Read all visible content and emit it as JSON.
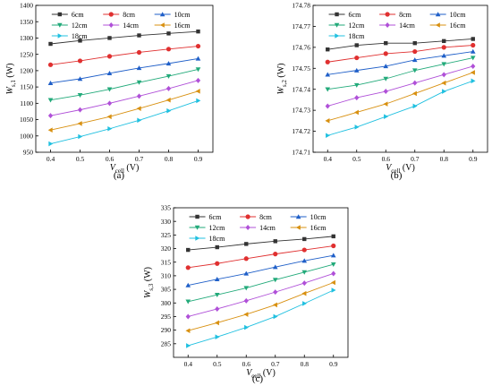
{
  "figure": {
    "panel_labels": [
      "(a)",
      "(b)",
      "(c)"
    ]
  },
  "series_style": [
    {
      "color": "#333333",
      "marker": "square"
    },
    {
      "color": "#e03030",
      "marker": "circle"
    },
    {
      "color": "#1f5fc8",
      "marker": "triangle-up"
    },
    {
      "color": "#22aa7a",
      "marker": "triangle-down"
    },
    {
      "color": "#b050d8",
      "marker": "diamond"
    },
    {
      "color": "#d89010",
      "marker": "triangle-left"
    },
    {
      "color": "#20c0e0",
      "marker": "triangle-right"
    }
  ],
  "chart_data": [
    {
      "type": "line",
      "ylabel": "W_{s,1} (W)",
      "xlabel": "V_{cell} (V)",
      "x": [
        0.4,
        0.5,
        0.6,
        0.7,
        0.8,
        0.9
      ],
      "xticks": [
        "0.4",
        "0.5",
        "0.6",
        "0.7",
        "0.8",
        "0.9"
      ],
      "xlim": [
        0.35,
        0.95
      ],
      "ylim": [
        950,
        1400
      ],
      "yticks": [
        "950",
        "1000",
        "1050",
        "1100",
        "1150",
        "1200",
        "1250",
        "1300",
        "1350",
        "1400"
      ],
      "legend_position": "top",
      "series": [
        {
          "name": "6cm",
          "values": [
            1282,
            1292,
            1300,
            1308,
            1314,
            1320
          ]
        },
        {
          "name": "8cm",
          "values": [
            1218,
            1230,
            1244,
            1256,
            1266,
            1275
          ]
        },
        {
          "name": "10cm",
          "values": [
            1162,
            1175,
            1192,
            1208,
            1222,
            1237
          ]
        },
        {
          "name": "12cm",
          "values": [
            1110,
            1125,
            1143,
            1164,
            1183,
            1204
          ]
        },
        {
          "name": "14cm",
          "values": [
            1062,
            1080,
            1100,
            1122,
            1145,
            1170
          ]
        },
        {
          "name": "16cm",
          "values": [
            1018,
            1038,
            1059,
            1084,
            1110,
            1137
          ]
        },
        {
          "name": "18cm",
          "values": [
            976,
            998,
            1022,
            1048,
            1077,
            1108
          ]
        }
      ]
    },
    {
      "type": "line",
      "ylabel": "W_{s,2} (W)",
      "xlabel": "V_{cell} (V)",
      "x": [
        0.4,
        0.5,
        0.6,
        0.7,
        0.8,
        0.9
      ],
      "xticks": [
        "0.4",
        "0.5",
        "0.6",
        "0.7",
        "0.8",
        "0.9"
      ],
      "xlim": [
        0.35,
        0.95
      ],
      "ylim": [
        174.71,
        174.78
      ],
      "yticks": [
        "174.71",
        "174.72",
        "174.73",
        "174.74",
        "174.75",
        "174.76",
        "174.77",
        "174.78"
      ],
      "legend_position": "top",
      "series": [
        {
          "name": "6cm",
          "values": [
            174.759,
            174.761,
            174.762,
            174.762,
            174.763,
            174.764
          ]
        },
        {
          "name": "8cm",
          "values": [
            174.753,
            174.755,
            174.757,
            174.758,
            174.76,
            174.761
          ]
        },
        {
          "name": "10cm",
          "values": [
            174.747,
            174.749,
            174.751,
            174.754,
            174.756,
            174.758
          ]
        },
        {
          "name": "12cm",
          "values": [
            174.74,
            174.742,
            174.745,
            174.749,
            174.752,
            174.755
          ]
        },
        {
          "name": "14cm",
          "values": [
            174.732,
            174.736,
            174.739,
            174.743,
            174.747,
            174.751
          ]
        },
        {
          "name": "16cm",
          "values": [
            174.725,
            174.729,
            174.733,
            174.738,
            174.743,
            174.748
          ]
        },
        {
          "name": "18cm",
          "values": [
            174.718,
            174.722,
            174.727,
            174.732,
            174.739,
            174.744
          ]
        }
      ]
    },
    {
      "type": "line",
      "ylabel": "W_{s,3} (W)",
      "xlabel": "V_{cell} (V)",
      "x": [
        0.4,
        0.5,
        0.6,
        0.7,
        0.8,
        0.9
      ],
      "xticks": [
        "0.4",
        "0.5",
        "0.6",
        "0.7",
        "0.8",
        "0.9"
      ],
      "xlim": [
        0.35,
        0.95
      ],
      "ylim": [
        280,
        335
      ],
      "yticks": [
        "285",
        "290",
        "295",
        "300",
        "305",
        "310",
        "315",
        "320",
        "325",
        "330",
        "335"
      ],
      "legend_position": "top",
      "series": [
        {
          "name": "6cm",
          "values": [
            319.5,
            320.5,
            321.7,
            322.7,
            323.5,
            324.5
          ]
        },
        {
          "name": "8cm",
          "values": [
            313.0,
            314.5,
            316.3,
            318.0,
            319.5,
            321.0
          ]
        },
        {
          "name": "10cm",
          "values": [
            306.5,
            308.7,
            310.8,
            313.2,
            315.5,
            317.5
          ]
        },
        {
          "name": "12cm",
          "values": [
            300.5,
            303.0,
            305.5,
            308.5,
            311.3,
            314.2
          ]
        },
        {
          "name": "14cm",
          "values": [
            295.0,
            297.8,
            300.8,
            304.0,
            307.3,
            310.8
          ]
        },
        {
          "name": "16cm",
          "values": [
            289.8,
            292.7,
            295.8,
            299.3,
            303.5,
            307.5
          ]
        },
        {
          "name": "18cm",
          "values": [
            284.3,
            287.5,
            291.0,
            295.0,
            299.8,
            304.7
          ]
        }
      ]
    }
  ]
}
